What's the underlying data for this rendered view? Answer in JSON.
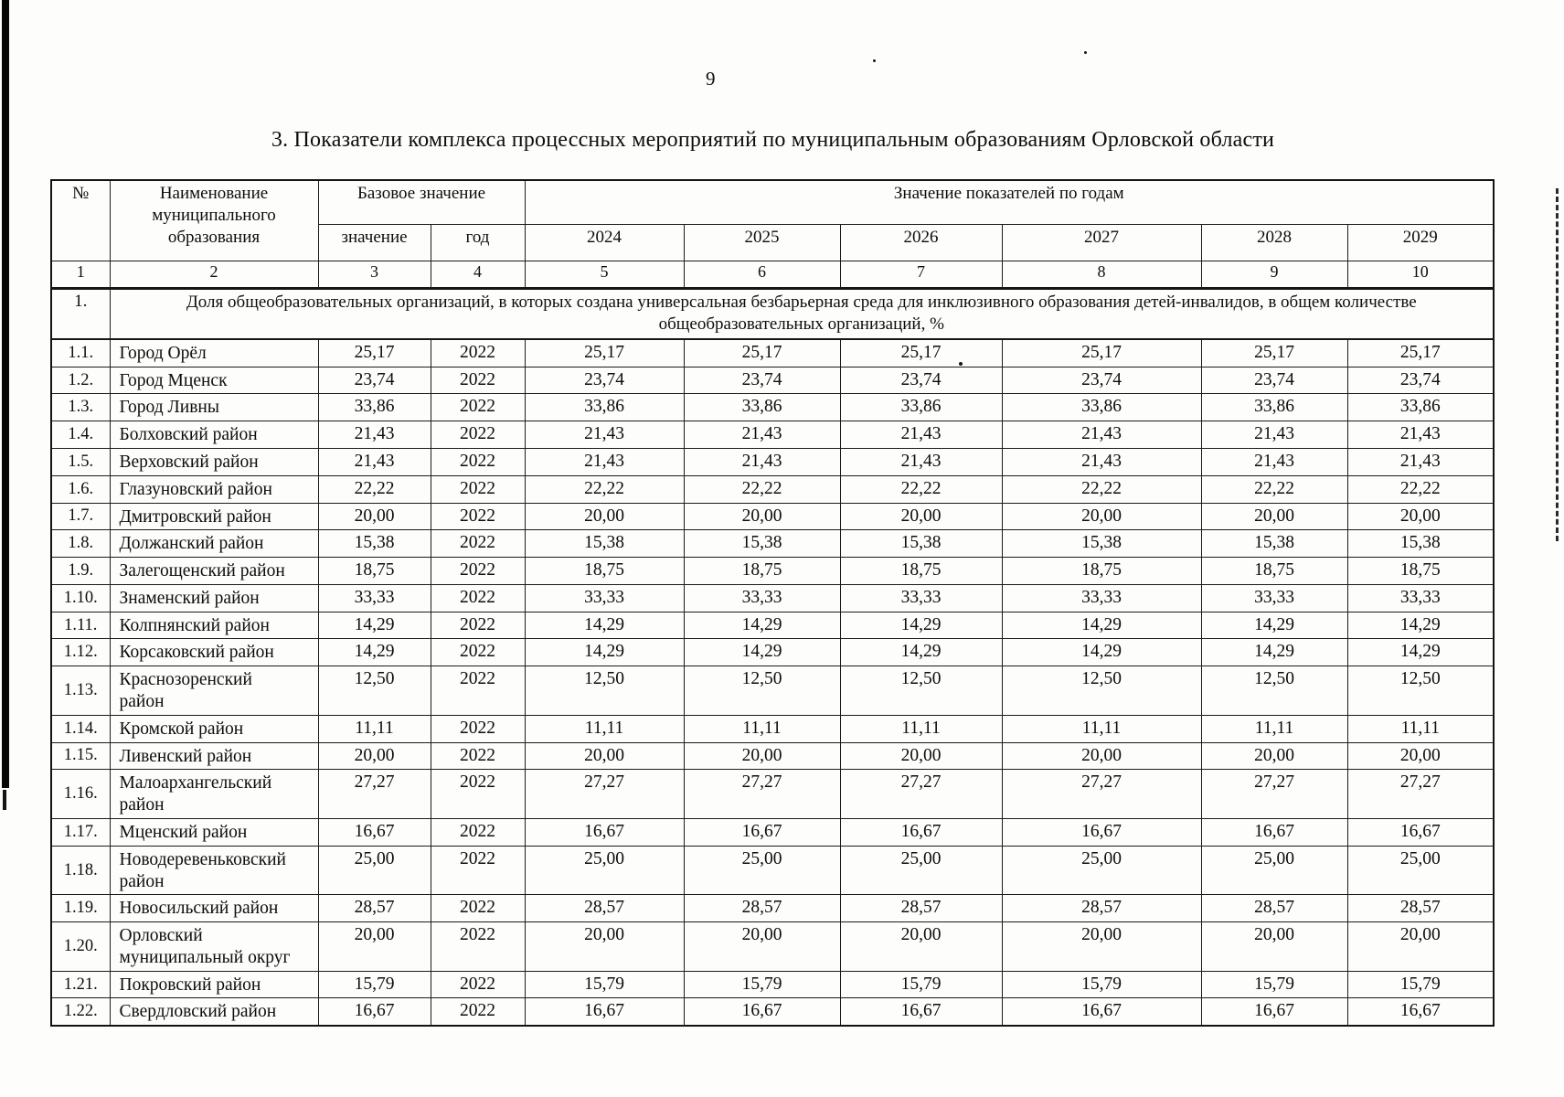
{
  "page": {
    "number": "9",
    "title": "3. Показатели комплекса процессных мероприятий по муниципальным образованиям Орловской области"
  },
  "table": {
    "header": {
      "num": "№",
      "name": "Наименование муниципального образования",
      "base_group": "Базовое значение",
      "base_value": "значение",
      "base_year": "год",
      "years_group": "Значение показателей по годам",
      "years": [
        "2024",
        "2025",
        "2026",
        "2027",
        "2028",
        "2029"
      ],
      "col_numbers": [
        "1",
        "2",
        "3",
        "4",
        "5",
        "6",
        "7",
        "8",
        "9",
        "10"
      ]
    },
    "indicator": {
      "num": "1.",
      "text": "Доля общеобразовательных организаций, в которых создана универсальная безбарьерная среда для инклюзивного образования детей-инвалидов, в общем количестве общеобразовательных организаций, %"
    },
    "rows": [
      {
        "num": "1.1.",
        "name": "Город Орёл",
        "base_value": "25,17",
        "base_year": "2022",
        "values": [
          "25,17",
          "25,17",
          "25,17",
          "25,17",
          "25,17",
          "25,17"
        ]
      },
      {
        "num": "1.2.",
        "name": "Город Мценск",
        "base_value": "23,74",
        "base_year": "2022",
        "values": [
          "23,74",
          "23,74",
          "23,74",
          "23,74",
          "23,74",
          "23,74"
        ]
      },
      {
        "num": "1.3.",
        "name": "Город Ливны",
        "base_value": "33,86",
        "base_year": "2022",
        "values": [
          "33,86",
          "33,86",
          "33,86",
          "33,86",
          "33,86",
          "33,86"
        ]
      },
      {
        "num": "1.4.",
        "name": "Болховский район",
        "base_value": "21,43",
        "base_year": "2022",
        "values": [
          "21,43",
          "21,43",
          "21,43",
          "21,43",
          "21,43",
          "21,43"
        ]
      },
      {
        "num": "1.5.",
        "name": "Верховский район",
        "base_value": "21,43",
        "base_year": "2022",
        "values": [
          "21,43",
          "21,43",
          "21,43",
          "21,43",
          "21,43",
          "21,43"
        ]
      },
      {
        "num": "1.6.",
        "name": "Глазуновский район",
        "base_value": "22,22",
        "base_year": "2022",
        "values": [
          "22,22",
          "22,22",
          "22,22",
          "22,22",
          "22,22",
          "22,22"
        ]
      },
      {
        "num": "1.7.",
        "name": "Дмитровский район",
        "base_value": "20,00",
        "base_year": "2022",
        "values": [
          "20,00",
          "20,00",
          "20,00",
          "20,00",
          "20,00",
          "20,00"
        ]
      },
      {
        "num": "1.8.",
        "name": "Должанский район",
        "base_value": "15,38",
        "base_year": "2022",
        "values": [
          "15,38",
          "15,38",
          "15,38",
          "15,38",
          "15,38",
          "15,38"
        ]
      },
      {
        "num": "1.9.",
        "name": "Залегощенский район",
        "base_value": "18,75",
        "base_year": "2022",
        "values": [
          "18,75",
          "18,75",
          "18,75",
          "18,75",
          "18,75",
          "18,75"
        ]
      },
      {
        "num": "1.10.",
        "name": "Знаменский район",
        "base_value": "33,33",
        "base_year": "2022",
        "values": [
          "33,33",
          "33,33",
          "33,33",
          "33,33",
          "33,33",
          "33,33"
        ]
      },
      {
        "num": "1.11.",
        "name": "Колпнянский район",
        "base_value": "14,29",
        "base_year": "2022",
        "values": [
          "14,29",
          "14,29",
          "14,29",
          "14,29",
          "14,29",
          "14,29"
        ]
      },
      {
        "num": "1.12.",
        "name": "Корсаковский район",
        "base_value": "14,29",
        "base_year": "2022",
        "values": [
          "14,29",
          "14,29",
          "14,29",
          "14,29",
          "14,29",
          "14,29"
        ]
      },
      {
        "num": "1.13.",
        "name": "Краснозоренский\nрайон",
        "base_value": "12,50",
        "base_year": "2022",
        "values": [
          "12,50",
          "12,50",
          "12,50",
          "12,50",
          "12,50",
          "12,50"
        ]
      },
      {
        "num": "1.14.",
        "name": "Кромской район",
        "base_value": "11,11",
        "base_year": "2022",
        "values": [
          "11,11",
          "11,11",
          "11,11",
          "11,11",
          "11,11",
          "11,11"
        ]
      },
      {
        "num": "1.15.",
        "name": "Ливенский район",
        "base_value": "20,00",
        "base_year": "2022",
        "values": [
          "20,00",
          "20,00",
          "20,00",
          "20,00",
          "20,00",
          "20,00"
        ]
      },
      {
        "num": "1.16.",
        "name": "Малоархангельский\nрайон",
        "base_value": "27,27",
        "base_year": "2022",
        "values": [
          "27,27",
          "27,27",
          "27,27",
          "27,27",
          "27,27",
          "27,27"
        ]
      },
      {
        "num": "1.17.",
        "name": "Мценский район",
        "base_value": "16,67",
        "base_year": "2022",
        "values": [
          "16,67",
          "16,67",
          "16,67",
          "16,67",
          "16,67",
          "16,67"
        ]
      },
      {
        "num": "1.18.",
        "name": "Новодеревеньковский\nрайон",
        "base_value": "25,00",
        "base_year": "2022",
        "values": [
          "25,00",
          "25,00",
          "25,00",
          "25,00",
          "25,00",
          "25,00"
        ]
      },
      {
        "num": "1.19.",
        "name": "Новосильский район",
        "base_value": "28,57",
        "base_year": "2022",
        "values": [
          "28,57",
          "28,57",
          "28,57",
          "28,57",
          "28,57",
          "28,57"
        ]
      },
      {
        "num": "1.20.",
        "name": "Орловский\nмуниципальный округ",
        "base_value": "20,00",
        "base_year": "2022",
        "values": [
          "20,00",
          "20,00",
          "20,00",
          "20,00",
          "20,00",
          "20,00"
        ]
      },
      {
        "num": "1.21.",
        "name": "Покровский район",
        "base_value": "15,79",
        "base_year": "2022",
        "values": [
          "15,79",
          "15,79",
          "15,79",
          "15,79",
          "15,79",
          "15,79"
        ]
      },
      {
        "num": "1.22.",
        "name": "Свердловский район",
        "base_value": "16,67",
        "base_year": "2022",
        "values": [
          "16,67",
          "16,67",
          "16,67",
          "16,67",
          "16,67",
          "16,67"
        ]
      }
    ]
  }
}
